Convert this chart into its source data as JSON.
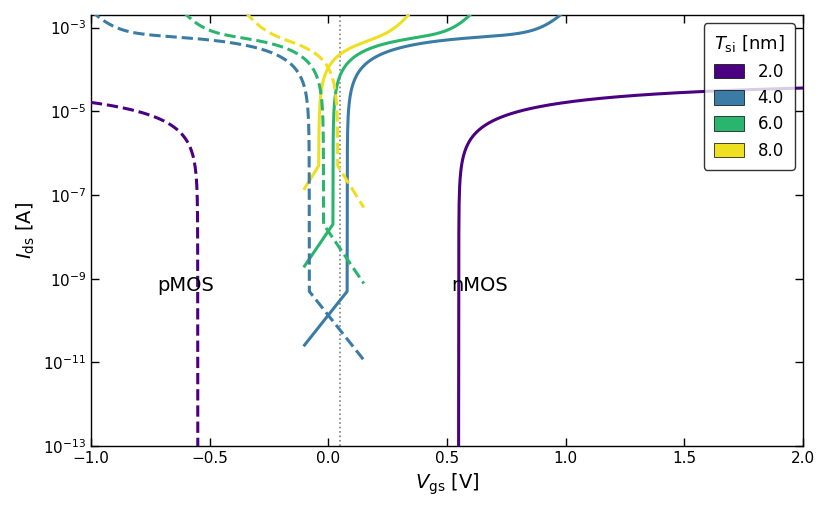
{
  "xlim": [
    -1.0,
    2.0
  ],
  "ylim": [
    1e-13,
    0.002
  ],
  "xticks": [
    -1.0,
    -0.5,
    0.0,
    0.5,
    1.0,
    1.5,
    2.0
  ],
  "colors": {
    "2.0": "#4b0082",
    "4.0": "#3a7ca5",
    "6.0": "#2ab56e",
    "8.0": "#eedf20"
  },
  "tsi_labels": [
    "2.0",
    "4.0",
    "6.0",
    "8.0"
  ],
  "pmos_label": "pMOS",
  "nmos_label": "nMOS",
  "vline_x": 0.05,
  "nmos_params": {
    "2.0": {
      "Vth": 0.55,
      "SS_dec": 0.38,
      "Imin": 5e-14,
      "Ion": 5e-05
    },
    "4.0": {
      "Vth": 0.08,
      "SS_dec": 0.14,
      "Imin": 5e-10,
      "Ion": 0.0008
    },
    "6.0": {
      "Vth": 0.02,
      "SS_dec": 0.12,
      "Imin": 2e-08,
      "Ion": 0.0009
    },
    "8.0": {
      "Vth": -0.04,
      "SS_dec": 0.11,
      "Imin": 5e-07,
      "Ion": 0.00095
    }
  },
  "pmos_params": {
    "2.0": {
      "Vth": -0.55,
      "SS_dec": 0.38,
      "Imin": 5e-14,
      "Ion": 5e-05
    },
    "4.0": {
      "Vth": -0.08,
      "SS_dec": 0.14,
      "Imin": 5e-10,
      "Ion": 0.0008
    },
    "6.0": {
      "Vth": -0.02,
      "SS_dec": 0.12,
      "Imin": 2e-08,
      "Ion": 0.0009
    },
    "8.0": {
      "Vth": 0.04,
      "SS_dec": 0.11,
      "Imin": 5e-07,
      "Ion": 0.00095
    }
  }
}
